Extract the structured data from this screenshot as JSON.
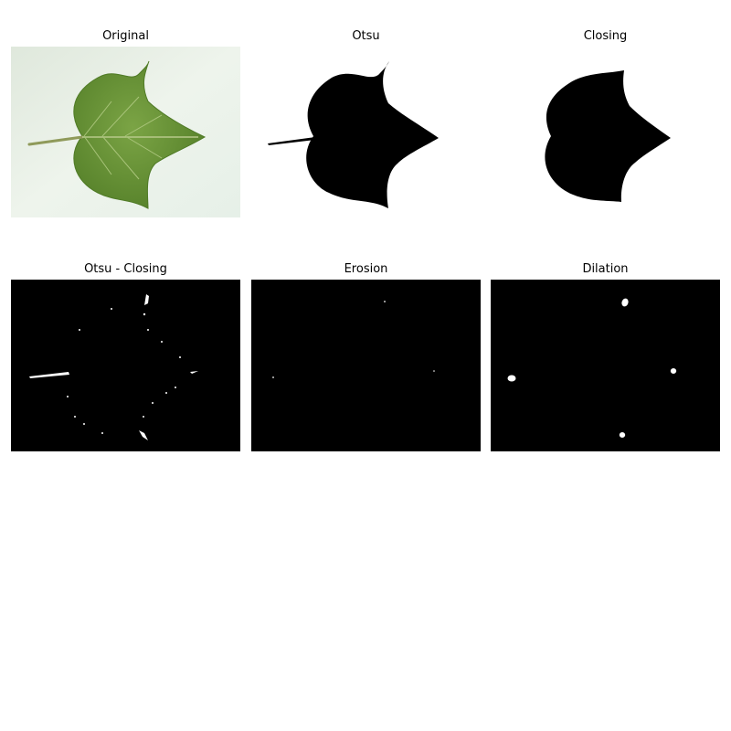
{
  "panels": {
    "original": {
      "title": "Original"
    },
    "otsu": {
      "title": "Otsu"
    },
    "closing": {
      "title": "Closing"
    },
    "otsu_minus_closing": {
      "title": "Otsu - Closing"
    },
    "erosion": {
      "title": "Erosion"
    },
    "dilation": {
      "title": "Dilation"
    }
  },
  "colors": {
    "leaf_green": "#6f9a3a",
    "leaf_dark": "#4f7a26",
    "background_light": "#e9f0e6",
    "mask_black": "#000000",
    "mask_white": "#ffffff"
  }
}
